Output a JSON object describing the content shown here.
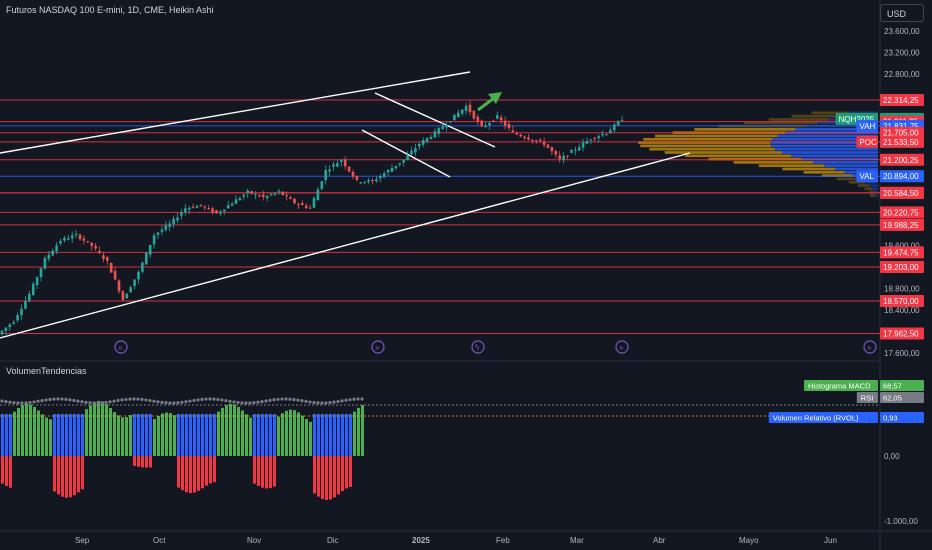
{
  "header": {
    "symbol_title": "Futuros NASDAQ 100 E-mini, 1D, CME, Heikin Ashi",
    "currency_button": "USD"
  },
  "indicator": {
    "name": "VolumenTendencias"
  },
  "colors": {
    "background": "#131722",
    "bull": "#26a69a",
    "bear": "#ef5350",
    "level_red": "#f23645",
    "level_blue": "#2962ff",
    "trendline": "#ffffff",
    "arrow": "#4caf50",
    "profile_orange": "#b8860b",
    "profile_blue": "#2962ff",
    "macd_green": "#4caf50",
    "macd_red": "#f23645",
    "macd_blue": "#2962ff",
    "rsi_gray": "#787b86"
  },
  "chart_data": [
    {
      "type": "candlestick",
      "style": "Heikin Ashi",
      "symbol": "NQH2025",
      "y_ticks": [
        "23.600,00",
        "23.200,00",
        "22.800,00",
        "19.600,00",
        "18.800,00",
        "18.400,00",
        "17.600,00"
      ],
      "x_ticks": [
        "Sep",
        "Oct",
        "Nov",
        "Dic",
        "2025",
        "Feb",
        "Mar",
        "Abr",
        "Mayo",
        "Jun"
      ],
      "ohlc_path": [
        {
          "date": "Ago",
          "value": 17950
        },
        {
          "date": "Ago",
          "value": 18200
        },
        {
          "date": "Ago",
          "value": 18700
        },
        {
          "date": "Ago",
          "value": 19350
        },
        {
          "date": "Ago",
          "value": 19700
        },
        {
          "date": "Ago",
          "value": 19800
        },
        {
          "date": "Sep",
          "value": 19600
        },
        {
          "date": "Sep",
          "value": 19300
        },
        {
          "date": "Sep",
          "value": 18600
        },
        {
          "date": "Sep",
          "value": 19100
        },
        {
          "date": "Sep",
          "value": 19800
        },
        {
          "date": "Sep",
          "value": 20000
        },
        {
          "date": "Oct",
          "value": 20300
        },
        {
          "date": "Oct",
          "value": 20350
        },
        {
          "date": "Oct",
          "value": 20200
        },
        {
          "date": "Oct",
          "value": 20400
        },
        {
          "date": "Oct",
          "value": 20600
        },
        {
          "date": "Oct",
          "value": 20500
        },
        {
          "date": "Oct",
          "value": 20600
        },
        {
          "date": "Oct",
          "value": 20400
        },
        {
          "date": "Nov",
          "value": 20300
        },
        {
          "date": "Nov",
          "value": 21000
        },
        {
          "date": "Nov",
          "value": 21200
        },
        {
          "date": "Nov",
          "value": 20800
        },
        {
          "date": "Nov",
          "value": 20800
        },
        {
          "date": "Nov",
          "value": 21000
        },
        {
          "date": "Nov",
          "value": 21200
        },
        {
          "date": "Dic",
          "value": 21500
        },
        {
          "date": "Dic",
          "value": 21700
        },
        {
          "date": "Dic",
          "value": 21950
        },
        {
          "date": "Dic",
          "value": 22200
        },
        {
          "date": "Dic",
          "value": 21800
        },
        {
          "date": "Dic",
          "value": 22000
        },
        {
          "date": "Dic",
          "value": 21700
        },
        {
          "date": "Dic",
          "value": 21600
        },
        {
          "date": "2025",
          "value": 21500
        },
        {
          "date": "2025",
          "value": 21200
        },
        {
          "date": "2025",
          "value": 21400
        },
        {
          "date": "2025",
          "value": 21600
        },
        {
          "date": "2025",
          "value": 21700
        },
        {
          "date": "2025",
          "value": 21963
        }
      ],
      "price_labels": [
        {
          "text": "22.314,25",
          "kind": "level"
        },
        {
          "text": "21.963,00",
          "kind": "last",
          "tag": "NQH2025"
        },
        {
          "text": "21.911,25",
          "kind": "level"
        },
        {
          "text": "21.831,75",
          "kind": "blue",
          "tag": "VAH"
        },
        {
          "text": "21.705,00",
          "kind": "level"
        },
        {
          "text": "21.533,50",
          "kind": "level",
          "tag": "POC"
        },
        {
          "text": "21.200,25",
          "kind": "level"
        },
        {
          "text": "20.894,00",
          "kind": "blue",
          "tag": "VAL"
        },
        {
          "text": "20.584,75",
          "kind": "level"
        },
        {
          "text": "20.584,50",
          "kind": "level"
        },
        {
          "text": "20.220,75",
          "kind": "level"
        },
        {
          "text": "19.988,25",
          "kind": "level"
        },
        {
          "text": "19.474,75",
          "kind": "level"
        },
        {
          "text": "19.203,00",
          "kind": "level"
        },
        {
          "text": "18.570,00",
          "kind": "level"
        },
        {
          "text": "17.962,50",
          "kind": "level"
        }
      ],
      "volume_profile": {
        "poc": 21533.5,
        "vah": 21831.75,
        "val": 20894.0
      },
      "grid": false,
      "legend": "none"
    },
    {
      "type": "bar",
      "name": "VolumenTendencias",
      "y_ticks": [
        "0,00",
        "-1.000,00"
      ],
      "labels": [
        {
          "text": "Histograma MACD",
          "value": "68,57"
        },
        {
          "text": "RSI",
          "value": "62,05"
        },
        {
          "text": "Volumen Relativo (RVOL)",
          "value": "0,93"
        }
      ],
      "histogram_segments": [
        {
          "sign": "neg",
          "bars": 3,
          "level": -0.7
        },
        {
          "sign": "pos",
          "bars": 10,
          "level": 0.9
        },
        {
          "sign": "neg",
          "bars": 8,
          "level": -0.9
        },
        {
          "sign": "pos",
          "bars": 12,
          "level": 0.95
        },
        {
          "sign": "neg",
          "bars": 5,
          "level": -0.25
        },
        {
          "sign": "pos",
          "bars": 6,
          "level": 0.75
        },
        {
          "sign": "neg",
          "bars": 10,
          "level": -0.8
        },
        {
          "sign": "pos",
          "bars": 9,
          "level": 0.9
        },
        {
          "sign": "neg",
          "bars": 6,
          "level": -0.7
        },
        {
          "sign": "pos",
          "bars": 9,
          "level": 0.8
        },
        {
          "sign": "neg",
          "bars": 10,
          "level": -0.95
        },
        {
          "sign": "pos",
          "bars": 3,
          "level": 0.9
        }
      ]
    }
  ]
}
